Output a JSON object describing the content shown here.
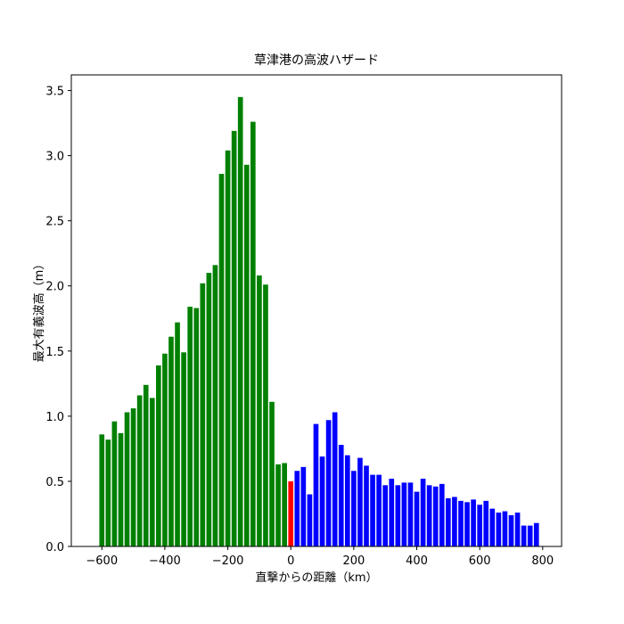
{
  "chart_data": {
    "type": "bar",
    "title": "草津港の高波ハザード",
    "xlabel": "直撃からの距離（km）",
    "ylabel": "最大有義波高（m）",
    "x": [
      -600,
      -580,
      -560,
      -540,
      -520,
      -500,
      -480,
      -460,
      -440,
      -420,
      -400,
      -380,
      -360,
      -340,
      -320,
      -300,
      -280,
      -260,
      -240,
      -220,
      -200,
      -180,
      -160,
      -140,
      -120,
      -100,
      -80,
      -60,
      -40,
      -20,
      0,
      20,
      40,
      60,
      80,
      100,
      120,
      140,
      160,
      180,
      200,
      220,
      240,
      260,
      280,
      300,
      320,
      340,
      360,
      380,
      400,
      420,
      440,
      460,
      480,
      500,
      520,
      540,
      560,
      580,
      600,
      620,
      640,
      660,
      680,
      700,
      720,
      740,
      760,
      780
    ],
    "values": [
      0.86,
      0.82,
      0.96,
      0.87,
      1.03,
      1.06,
      1.16,
      1.24,
      1.14,
      1.39,
      1.48,
      1.61,
      1.72,
      1.49,
      1.84,
      1.83,
      2.02,
      2.1,
      2.16,
      2.86,
      3.04,
      3.19,
      3.45,
      2.93,
      3.26,
      2.08,
      2.01,
      1.11,
      0.63,
      0.64,
      0.5,
      0.58,
      0.61,
      0.4,
      0.94,
      0.69,
      0.97,
      1.03,
      0.78,
      0.7,
      0.58,
      0.68,
      0.62,
      0.55,
      0.55,
      0.47,
      0.52,
      0.47,
      0.49,
      0.49,
      0.42,
      0.52,
      0.47,
      0.46,
      0.48,
      0.37,
      0.38,
      0.35,
      0.34,
      0.36,
      0.32,
      0.35,
      0.29,
      0.26,
      0.27,
      0.24,
      0.26,
      0.16,
      0.16,
      0.18
    ],
    "colors": [
      "green",
      "green",
      "green",
      "green",
      "green",
      "green",
      "green",
      "green",
      "green",
      "green",
      "green",
      "green",
      "green",
      "green",
      "green",
      "green",
      "green",
      "green",
      "green",
      "green",
      "green",
      "green",
      "green",
      "green",
      "green",
      "green",
      "green",
      "green",
      "green",
      "green",
      "red",
      "blue",
      "blue",
      "blue",
      "blue",
      "blue",
      "blue",
      "blue",
      "blue",
      "blue",
      "blue",
      "blue",
      "blue",
      "blue",
      "blue",
      "blue",
      "blue",
      "blue",
      "blue",
      "blue",
      "blue",
      "blue",
      "blue",
      "blue",
      "blue",
      "blue",
      "blue",
      "blue",
      "blue",
      "blue",
      "blue",
      "blue",
      "blue",
      "blue",
      "blue",
      "blue",
      "blue",
      "blue",
      "blue",
      "blue"
    ],
    "bar_width": 16,
    "xlim": [
      -697,
      860
    ],
    "ylim": [
      0,
      3.62
    ],
    "xticks": [
      {
        "value": -600,
        "label": "−600"
      },
      {
        "value": -400,
        "label": "−400"
      },
      {
        "value": -200,
        "label": "−200"
      },
      0,
      200,
      400,
      600,
      800
    ],
    "yticks": [
      {
        "value": 0,
        "label": "0.0"
      },
      0.5,
      {
        "value": 1,
        "label": "1.0"
      },
      1.5,
      {
        "value": 2,
        "label": "2.0"
      },
      2.5,
      {
        "value": 3,
        "label": "3.0"
      },
      3.5
    ]
  }
}
